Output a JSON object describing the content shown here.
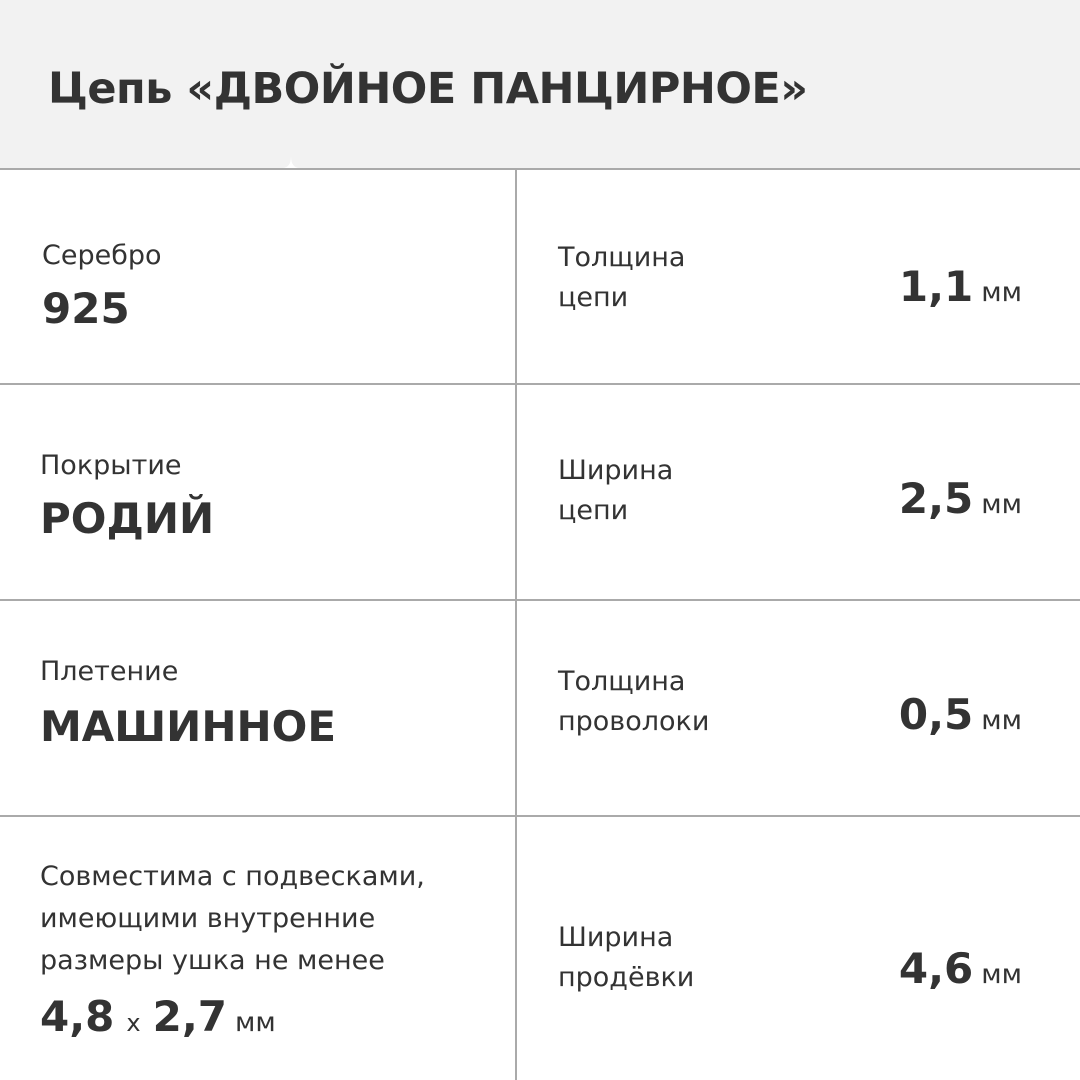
{
  "title": "Цепь «ДВОЙНОЕ ПАНЦИРНОЕ»",
  "left": [
    {
      "label": "Серебро",
      "value": "925"
    },
    {
      "label": "Покрытие",
      "value": "РОДИЙ"
    },
    {
      "label": "Плетение",
      "value": "МАШИННОЕ"
    }
  ],
  "compat": {
    "lines": [
      "Совместима с подвесками,",
      "имеющими внутренние",
      "размеры ушка не менее"
    ],
    "width": "4,8",
    "times": "x",
    "height": "2,7",
    "unit": "мм"
  },
  "right": [
    {
      "label_lines": [
        "Толщина",
        "цепи"
      ],
      "value": "1,1",
      "unit": "мм"
    },
    {
      "label_lines": [
        "Ширина",
        "цепи"
      ],
      "value": "2,5",
      "unit": "мм"
    },
    {
      "label_lines": [
        "Толщина",
        "проволоки"
      ],
      "value": "0,5",
      "unit": "мм"
    },
    {
      "label_lines": [
        "Ширина",
        "продёвки"
      ],
      "value": "4,6",
      "unit": "мм"
    }
  ]
}
